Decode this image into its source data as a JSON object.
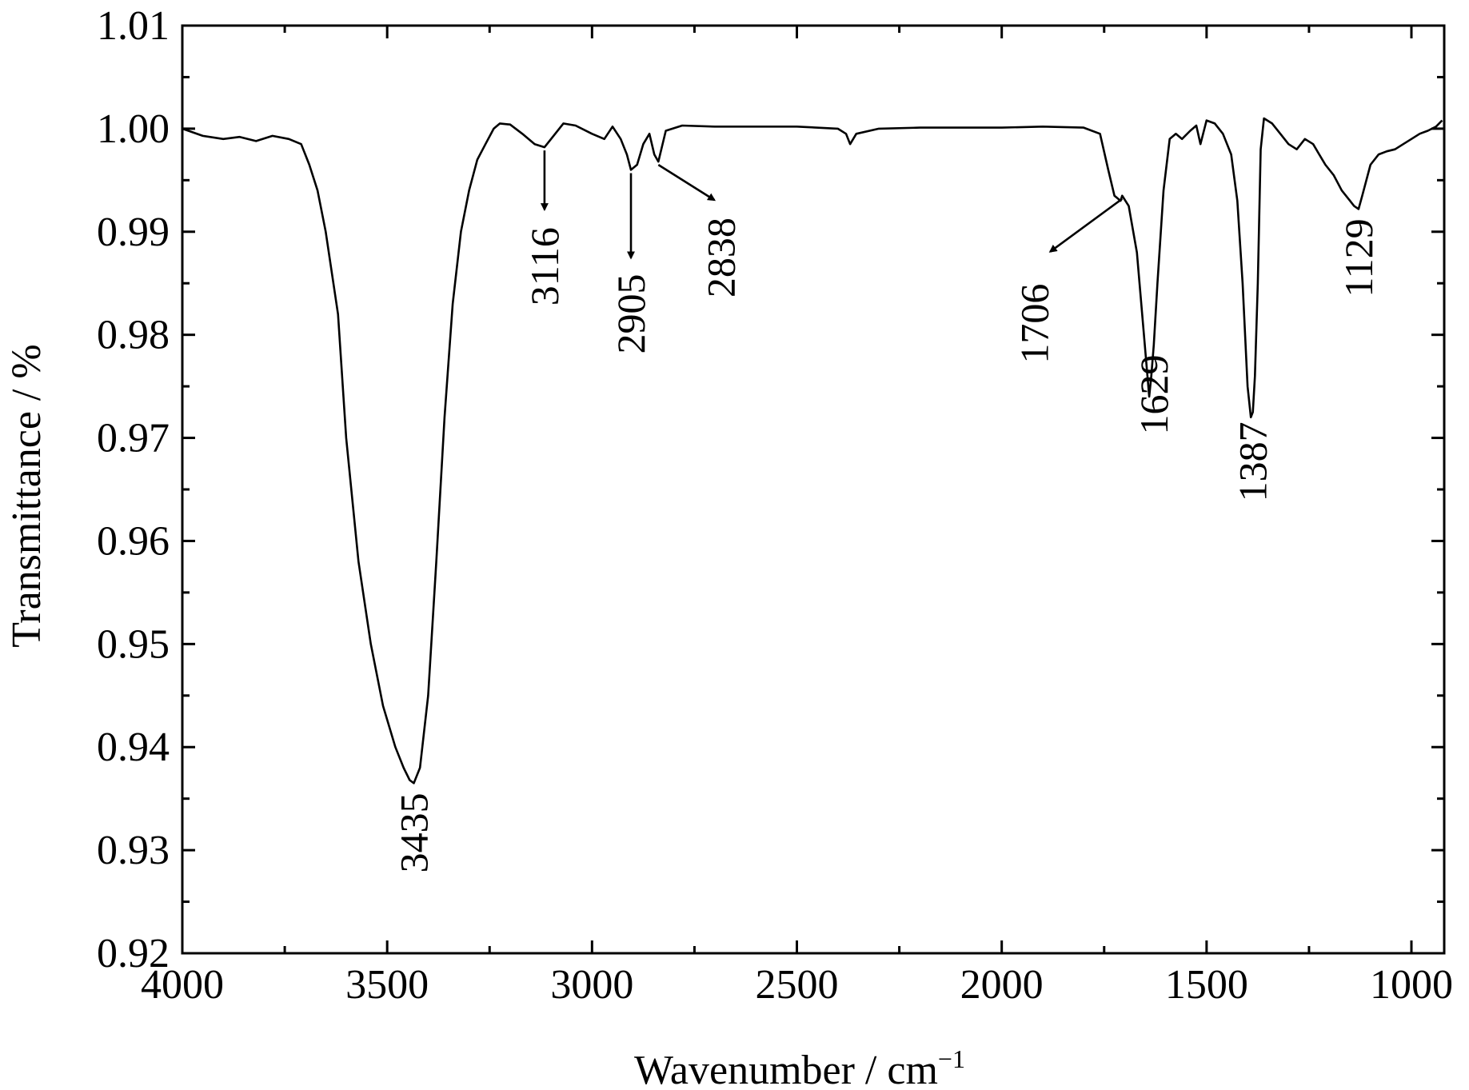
{
  "chart_data": {
    "type": "line",
    "xlabel": "Wavenumber / cm",
    "xlabel_sup": "−1",
    "ylabel": "Transmittance / %",
    "xlim": [
      4000,
      920
    ],
    "ylim": [
      0.92,
      1.01
    ],
    "x_ticks": [
      4000,
      3500,
      3000,
      2500,
      2000,
      1500,
      1000
    ],
    "x_tick_labels": [
      "4000",
      "3500",
      "3000",
      "2500",
      "2000",
      "1500",
      "1000"
    ],
    "y_ticks": [
      0.92,
      0.93,
      0.94,
      0.95,
      0.96,
      0.97,
      0.98,
      0.99,
      1.0,
      1.01
    ],
    "y_tick_labels": [
      "0.92",
      "0.93",
      "0.94",
      "0.95",
      "0.96",
      "0.97",
      "0.98",
      "0.99",
      "1.00",
      "1.01"
    ],
    "grid": false,
    "series": [
      {
        "x": [
          4000,
          3950,
          3900,
          3860,
          3820,
          3780,
          3740,
          3710,
          3690,
          3670,
          3650,
          3620,
          3600,
          3570,
          3540,
          3510,
          3480,
          3460,
          3445,
          3435,
          3420,
          3400,
          3380,
          3360,
          3340,
          3320,
          3300,
          3280,
          3260,
          3240,
          3225,
          3200,
          3170,
          3140,
          3116,
          3100,
          3070,
          3040,
          3000,
          2970,
          2950,
          2930,
          2915,
          2905,
          2890,
          2875,
          2860,
          2848,
          2838,
          2820,
          2780,
          2700,
          2600,
          2500,
          2400,
          2380,
          2370,
          2355,
          2300,
          2200,
          2100,
          2000,
          1900,
          1800,
          1760,
          1740,
          1725,
          1710,
          1706,
          1690,
          1670,
          1655,
          1640,
          1635,
          1629,
          1620,
          1605,
          1590,
          1575,
          1560,
          1540,
          1525,
          1515,
          1500,
          1480,
          1460,
          1440,
          1425,
          1412,
          1400,
          1392,
          1387,
          1382,
          1375,
          1368,
          1360,
          1340,
          1320,
          1300,
          1280,
          1260,
          1240,
          1225,
          1210,
          1190,
          1170,
          1150,
          1140,
          1129,
          1120,
          1100,
          1080,
          1060,
          1040,
          1020,
          1000,
          980,
          960,
          940,
          925
        ],
        "values": [
          1.0,
          0.9993,
          0.999,
          0.9992,
          0.9988,
          0.9993,
          0.999,
          0.9985,
          0.9965,
          0.994,
          0.99,
          0.982,
          0.97,
          0.958,
          0.95,
          0.944,
          0.94,
          0.938,
          0.9368,
          0.9365,
          0.938,
          0.945,
          0.958,
          0.972,
          0.983,
          0.99,
          0.994,
          0.997,
          0.9985,
          1.0,
          1.0005,
          1.0004,
          0.9995,
          0.9985,
          0.9982,
          0.999,
          1.0005,
          1.0003,
          0.9995,
          0.999,
          1.0002,
          0.999,
          0.9975,
          0.996,
          0.9965,
          0.9985,
          0.9995,
          0.9975,
          0.9968,
          0.9998,
          1.0003,
          1.0002,
          1.0002,
          1.0002,
          1.0,
          0.9995,
          0.9985,
          0.9995,
          1.0,
          1.0001,
          1.0001,
          1.0001,
          1.0002,
          1.0001,
          0.9995,
          0.996,
          0.9935,
          0.993,
          0.9935,
          0.9925,
          0.988,
          0.981,
          0.974,
          0.976,
          0.979,
          0.985,
          0.994,
          0.999,
          0.9995,
          0.999,
          0.9998,
          1.0003,
          0.9985,
          1.0008,
          1.0005,
          0.9995,
          0.9975,
          0.993,
          0.985,
          0.975,
          0.972,
          0.9725,
          0.976,
          0.985,
          0.998,
          1.001,
          1.0005,
          0.9995,
          0.9985,
          0.998,
          0.999,
          0.9985,
          0.9975,
          0.9965,
          0.9955,
          0.994,
          0.993,
          0.9925,
          0.9922,
          0.9935,
          0.9965,
          0.9975,
          0.9978,
          0.998,
          0.9985,
          0.999,
          0.9995,
          0.9998,
          1.0002,
          1.0008
        ]
      }
    ],
    "annotations": [
      {
        "label": "3435",
        "x": 3435,
        "arrow": false
      },
      {
        "label": "3116",
        "x": 3116,
        "arrow": true
      },
      {
        "label": "2905",
        "x": 2905,
        "arrow": true
      },
      {
        "label": "2838",
        "x": 2838,
        "arrow": true
      },
      {
        "label": "1706",
        "x": 1706,
        "arrow": true
      },
      {
        "label": "1629",
        "x": 1629,
        "arrow": false
      },
      {
        "label": "1387",
        "x": 1387,
        "arrow": false
      },
      {
        "label": "1129",
        "x": 1129,
        "arrow": false
      }
    ]
  }
}
